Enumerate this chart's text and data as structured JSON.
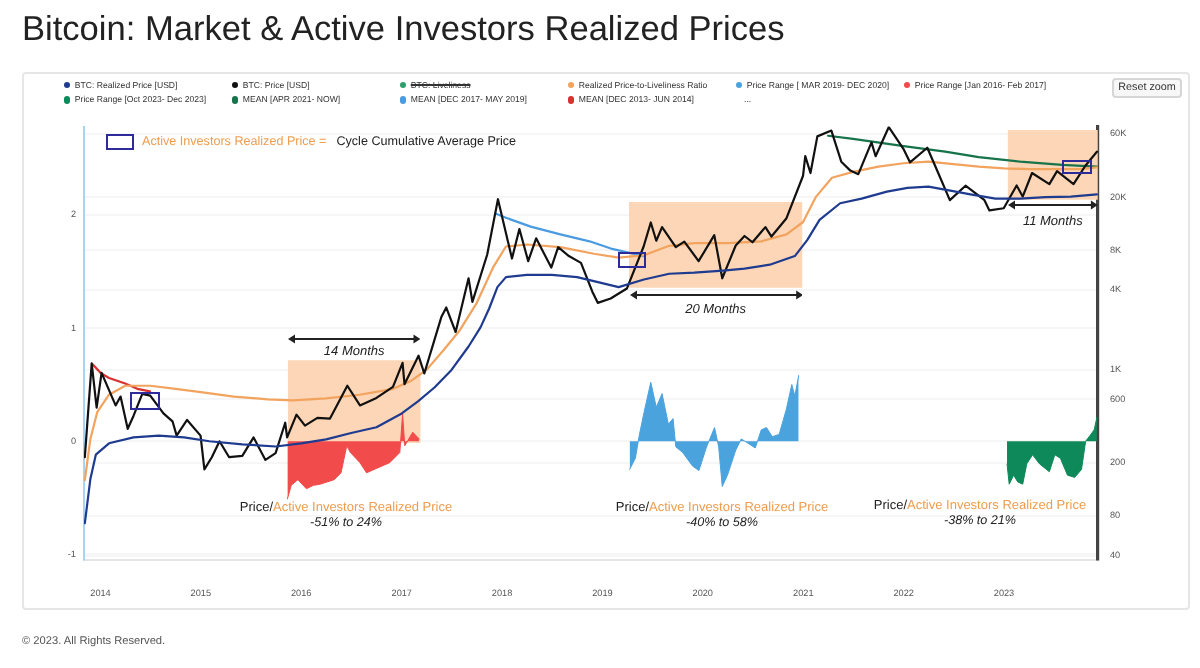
{
  "chart_data": {
    "type": "line",
    "title": "Bitcoin: Market & Active Investors Realized Prices",
    "xlim": [
      "2013-11-02",
      "2023-12-09"
    ],
    "xticks": [
      "2014",
      "2015",
      "2016",
      "2017",
      "2018",
      "2019",
      "2020",
      "2021",
      "2022",
      "2023"
    ],
    "ylim": [
      -1.05,
      2.78
    ],
    "yticks": [
      -1,
      0,
      1,
      2
    ],
    "y2lim": [
      37,
      68000
    ],
    "y2ticks": [
      40,
      80,
      200,
      600,
      {
        "value": 1000,
        "label": "1K"
      },
      {
        "value": 4000,
        "label": "4K"
      },
      {
        "value": 8000,
        "label": "8K"
      },
      {
        "value": 20000,
        "label": "20K"
      },
      {
        "value": 60000,
        "label": "60K"
      }
    ],
    "log": "y2",
    "grid": "y",
    "legend": "top left",
    "series": [
      {
        "name": "BTC: Realized Price [USD]",
        "axis": "y2",
        "color": "#1f3b8f",
        "x": [
          "2013-11-05",
          "2013-11-25",
          "2013-12-15",
          "2014-02-01",
          "2014-05-01",
          "2014-08-01",
          "2014-11-01",
          "2015-02-01",
          "2015-06-01",
          "2015-10-01",
          "2016-01-01",
          "2016-04-01",
          "2016-07-01",
          "2016-10-01",
          "2017-01-01",
          "2017-03-01",
          "2017-05-01",
          "2017-07-01",
          "2017-09-01",
          "2017-10-15",
          "2017-11-15",
          "2017-12-15",
          "2018-01-15",
          "2018-04-01",
          "2018-07-01",
          "2018-10-01",
          "2018-12-31",
          "2019-03-01",
          "2019-06-01",
          "2019-09-01",
          "2019-12-01",
          "2020-03-15",
          "2020-06-01",
          "2020-09-01",
          "2020-12-01",
          "2021-01-15",
          "2021-03-01",
          "2021-05-15",
          "2021-08-01",
          "2021-11-01",
          "2022-01-15",
          "2022-04-01",
          "2022-06-15",
          "2022-09-01",
          "2022-12-01",
          "2023-03-01",
          "2023-06-01",
          "2023-09-01",
          "2023-12-05"
        ],
        "values": [
          70,
          150,
          230,
          280,
          310,
          320,
          310,
          290,
          275,
          265,
          280,
          300,
          335,
          370,
          470,
          580,
          740,
          1000,
          1500,
          2100,
          2900,
          4200,
          5000,
          5200,
          5200,
          5000,
          4500,
          4200,
          4800,
          5300,
          5400,
          5600,
          5800,
          6200,
          7200,
          9500,
          13500,
          18000,
          19500,
          22000,
          23500,
          24000,
          22500,
          21000,
          19500,
          19500,
          20000,
          20200,
          21000
        ]
      },
      {
        "name": "BTC: Price [USD]",
        "axis": "y2",
        "color": "#111111",
        "x": [
          "2013-11-05",
          "2013-11-30",
          "2013-12-18",
          "2014-01-05",
          "2014-02-25",
          "2014-03-15",
          "2014-04-10",
          "2014-05-01",
          "2014-06-02",
          "2014-07-01",
          "2014-08-18",
          "2014-09-20",
          "2014-10-05",
          "2014-11-12",
          "2014-12-31",
          "2015-01-14",
          "2015-02-10",
          "2015-03-10",
          "2015-04-14",
          "2015-06-01",
          "2015-07-12",
          "2015-08-24",
          "2015-09-30",
          "2015-11-04",
          "2015-11-11",
          "2015-12-15",
          "2016-01-15",
          "2016-02-29",
          "2016-04-15",
          "2016-06-17",
          "2016-08-02",
          "2016-10-01",
          "2016-11-30",
          "2017-01-04",
          "2017-01-11",
          "2017-03-03",
          "2017-03-24",
          "2017-05-25",
          "2017-06-12",
          "2017-07-16",
          "2017-09-01",
          "2017-09-15",
          "2017-11-08",
          "2017-12-17",
          "2018-02-06",
          "2018-03-05",
          "2018-04-06",
          "2018-05-05",
          "2018-06-29",
          "2018-07-24",
          "2018-09-01",
          "2018-10-15",
          "2018-11-25",
          "2018-12-15",
          "2019-01-31",
          "2019-03-31",
          "2019-05-31",
          "2019-06-26",
          "2019-07-16",
          "2019-08-06",
          "2019-09-25",
          "2019-10-26",
          "2019-12-17",
          "2020-02-12",
          "2020-03-12",
          "2020-04-30",
          "2020-06-01",
          "2020-06-30",
          "2020-08-16",
          "2020-09-07",
          "2020-10-31",
          "2020-12-31",
          "2021-01-08",
          "2021-01-27",
          "2021-02-21",
          "2021-04-13",
          "2021-05-19",
          "2021-06-21",
          "2021-07-20",
          "2021-09-06",
          "2021-09-21",
          "2021-11-08",
          "2021-12-31",
          "2022-01-24",
          "2022-03-28",
          "2022-05-11",
          "2022-06-18",
          "2022-08-14",
          "2022-10-21",
          "2022-11-09",
          "2022-12-31",
          "2023-02-16",
          "2023-03-10",
          "2023-04-13",
          "2023-06-15",
          "2023-07-13",
          "2023-09-11",
          "2023-10-24",
          "2023-12-05"
        ],
        "values": [
          220,
          1120,
          520,
          950,
          540,
          630,
          360,
          450,
          660,
          640,
          470,
          410,
          320,
          420,
          320,
          178,
          220,
          290,
          220,
          225,
          310,
          210,
          236,
          400,
          310,
          460,
          380,
          435,
          430,
          760,
          540,
          615,
          745,
          1130,
          780,
          1280,
          940,
          2500,
          2950,
          1930,
          4900,
          3250,
          7400,
          19300,
          6900,
          11500,
          6600,
          9800,
          5900,
          8400,
          7200,
          6400,
          3900,
          3200,
          3450,
          4100,
          8500,
          12900,
          9400,
          11900,
          8400,
          9250,
          6600,
          10350,
          4900,
          8650,
          10200,
          9150,
          11900,
          10100,
          13800,
          29000,
          40800,
          30400,
          57400,
          63500,
          37000,
          31700,
          29800,
          51700,
          40700,
          67500,
          46300,
          36600,
          47100,
          29000,
          19000,
          24400,
          19100,
          15900,
          16500,
          24500,
          20200,
          30400,
          25100,
          31400,
          25100,
          34500,
          44000
        ]
      },
      {
        "name": "BTC: Liveliness",
        "axis": "y2",
        "color": "#2e9e6b"
      },
      {
        "name": "Realized Price-to-Liveliness Ratio",
        "axis": "y2",
        "color": "#f2a35e",
        "x": [
          "2013-11-05",
          "2013-11-25",
          "2013-12-20",
          "2014-02-01",
          "2014-04-01",
          "2014-07-01",
          "2014-10-01",
          "2015-01-01",
          "2015-05-01",
          "2015-09-01",
          "2015-12-01",
          "2016-04-01",
          "2016-08-01",
          "2016-12-01",
          "2017-02-01",
          "2017-04-01",
          "2017-06-01",
          "2017-08-01",
          "2017-10-01",
          "2017-12-01",
          "2018-01-15",
          "2018-04-01",
          "2018-08-01",
          "2018-12-01",
          "2019-03-01",
          "2019-06-01",
          "2019-09-01",
          "2019-12-01",
          "2020-04-01",
          "2020-08-01",
          "2020-11-01",
          "2020-12-31",
          "2021-02-15",
          "2021-04-15",
          "2021-07-01",
          "2021-10-01",
          "2022-01-01",
          "2022-04-01",
          "2022-07-01",
          "2022-10-01",
          "2023-01-01",
          "2023-04-01",
          "2023-07-01",
          "2023-10-01",
          "2023-12-05"
        ],
        "values": [
          148,
          300,
          480,
          650,
          760,
          760,
          720,
          680,
          630,
          600,
          590,
          610,
          650,
          720,
          820,
          1000,
          1400,
          2000,
          3200,
          6000,
          8500,
          8800,
          8400,
          7500,
          7000,
          7300,
          8600,
          9000,
          9000,
          9300,
          10500,
          13000,
          20000,
          28000,
          31000,
          34000,
          36000,
          37000,
          35500,
          34000,
          33000,
          32500,
          32500,
          32500,
          33500
        ]
      },
      {
        "name": "Price Range [ MAR 2019- DEC 2020]",
        "type": "area",
        "color": "#4ba3de",
        "x": [
          "2019-04-10",
          "2019-05-01",
          "2019-05-15",
          "2019-06-01",
          "2019-06-26",
          "2019-07-16",
          "2019-08-06",
          "2019-08-29",
          "2019-09-15",
          "2019-09-25",
          "2019-10-20",
          "2019-11-25",
          "2019-12-18",
          "2020-01-15",
          "2020-02-13",
          "2020-02-28",
          "2020-03-12",
          "2020-03-31",
          "2020-04-30",
          "2020-05-20",
          "2020-06-15",
          "2020-07-10",
          "2020-08-01",
          "2020-08-20",
          "2020-09-10",
          "2020-10-05",
          "2020-10-31",
          "2020-11-20",
          "2020-12-01",
          "2020-12-15"
        ],
        "values": [
          -0.25,
          -0.15,
          0.05,
          0.25,
          0.52,
          0.3,
          0.42,
          0.15,
          0.2,
          -0.05,
          -0.1,
          -0.22,
          -0.26,
          -0.05,
          0.12,
          -0.05,
          -0.4,
          -0.3,
          -0.08,
          0.02,
          -0.02,
          -0.06,
          0.1,
          0.12,
          0.04,
          0.06,
          0.28,
          0.5,
          0.4,
          0.58
        ]
      },
      {
        "name": "Price Range [Jan 2016- Feb 2017]",
        "type": "area",
        "color": "#f24b4b",
        "x": [
          "2015-11-12",
          "2015-11-26",
          "2015-12-20",
          "2016-01-20",
          "2016-02-15",
          "2016-03-10",
          "2016-04-30",
          "2016-05-25",
          "2016-06-15",
          "2016-06-28",
          "2016-07-10",
          "2016-08-02",
          "2016-08-26",
          "2016-09-22",
          "2016-11-18",
          "2016-12-25",
          "2017-01-04",
          "2017-01-12",
          "2017-02-10",
          "2017-03-05"
        ],
        "values": [
          -0.51,
          -0.39,
          -0.34,
          -0.42,
          -0.39,
          -0.38,
          -0.34,
          -0.28,
          -0.04,
          -0.1,
          -0.13,
          -0.19,
          -0.28,
          -0.25,
          -0.19,
          -0.1,
          0.24,
          -0.04,
          0.08,
          0.02
        ]
      },
      {
        "name": "Price Range [Oct 2023- Dec 2023]",
        "type": "area",
        "color": "#0e8a5a",
        "x": [
          "2023-01-12",
          "2023-01-20",
          "2023-02-05",
          "2023-02-20",
          "2023-03-10",
          "2023-03-25",
          "2023-04-15",
          "2023-05-10",
          "2023-06-15",
          "2023-07-05",
          "2023-07-25",
          "2023-08-20",
          "2023-09-15",
          "2023-10-10",
          "2023-10-25",
          "2023-11-10",
          "2023-11-25",
          "2023-12-05"
        ],
        "values": [
          -0.2,
          -0.38,
          -0.3,
          -0.36,
          -0.38,
          -0.2,
          -0.12,
          -0.2,
          -0.27,
          -0.12,
          -0.15,
          -0.3,
          -0.32,
          -0.25,
          0.0,
          0.05,
          0.1,
          0.21
        ]
      },
      {
        "name": "MEAN [APR 2021- NOW]",
        "axis": "y2",
        "color": "#17734a",
        "x": [
          "2021-04-01",
          "2021-07-01",
          "2022-01-01",
          "2022-06-01",
          "2022-10-01",
          "2023-03-01",
          "2023-08-01",
          "2023-12-05"
        ],
        "values": [
          58000,
          55000,
          48500,
          44000,
          40000,
          37000,
          35000,
          34000
        ]
      },
      {
        "name": "MEAN [DEC 2017- MAY 2019]",
        "axis": "y2",
        "color": "#4a9be0",
        "x": [
          "2017-12-10",
          "2018-01-15",
          "2018-04-15",
          "2018-08-01",
          "2018-11-15",
          "2019-02-01",
          "2019-05-31"
        ],
        "values": [
          15000,
          14000,
          12000,
          10500,
          9300,
          8200,
          7200
        ]
      },
      {
        "name": "MEAN [DEC 2013- JUN 2014]",
        "axis": "y2",
        "color": "#d93030",
        "x": [
          "2013-12-04",
          "2014-01-01",
          "2014-02-01",
          "2014-04-01",
          "2014-05-15",
          "2014-06-30"
        ],
        "values": [
          1100,
          950,
          870,
          790,
          720,
          690
        ]
      }
    ],
    "bands": [
      {
        "axis": "x",
        "from": "2015-11-14",
        "to": "2017-03-10",
        "color": "#fcd6b6"
      },
      {
        "axis": "x",
        "from": "2019-04-08",
        "to": "2020-12-28",
        "color": "#fcd6b6"
      },
      {
        "axis": "x",
        "from": "2023-01-15",
        "to": "2023-12-08",
        "color": "#fcd6b6"
      }
    ],
    "annotations": [
      "Reset zoom",
      "...",
      "Active Investors Realized Price =",
      "Cycle Cumulative Average Price",
      "14 Months",
      "20 Months",
      "11 Months",
      "Price/",
      "Active Investors Realized Price",
      "-51% to 24%",
      "Price/",
      "Active Investors Realized Price",
      "-40% to 58%",
      "Price/",
      "Active Investors Realized Price",
      "-38% to 21%",
      "© 2023. All Rights Reserved."
    ]
  }
}
